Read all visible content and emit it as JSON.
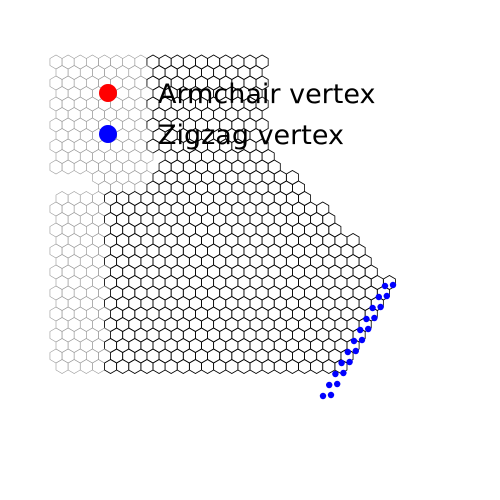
{
  "figure": {
    "legend": {
      "items": [
        {
          "label": "Armchair vertex",
          "color": "#ff0000"
        },
        {
          "label": "Zigzag vertex",
          "color": "#0000ff"
        }
      ]
    },
    "colors": {
      "background": "#ffffff",
      "hexagon_edge_dark": "#000000",
      "hexagon_edge_light": "#9a9a9a"
    }
  }
}
